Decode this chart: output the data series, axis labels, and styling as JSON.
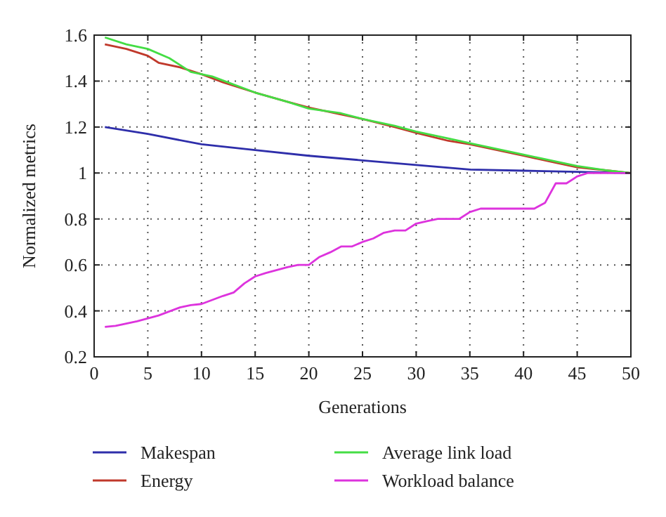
{
  "chart_data": {
    "type": "line",
    "xlabel": "Generations",
    "ylabel": "Normalized metrics",
    "xlim": [
      0,
      50
    ],
    "xticks": [
      0,
      5,
      10,
      15,
      20,
      25,
      30,
      35,
      40,
      45,
      50
    ],
    "ylim": [
      0.2,
      1.6
    ],
    "yticks": [
      0.2,
      0.4,
      0.6,
      0.8,
      {
        "value": 1,
        "label": "1"
      },
      1.2,
      1.4,
      1.6
    ],
    "grid": true,
    "line_style": "solid",
    "legend": "bottom",
    "series": [
      {
        "name": "Makespan",
        "color": "#2e2eaa",
        "x": [
          1,
          5,
          10,
          15,
          20,
          25,
          30,
          35,
          40,
          45,
          50
        ],
        "values": [
          1.2,
          1.17,
          1.125,
          1.1,
          1.075,
          1.055,
          1.035,
          1.015,
          1.01,
          1.005,
          1.0
        ]
      },
      {
        "name": "Energy",
        "color": "#c0392b",
        "x": [
          1,
          3,
          5,
          6,
          8,
          10,
          12,
          15,
          18,
          20,
          23,
          25,
          28,
          30,
          33,
          35,
          38,
          40,
          43,
          45,
          48,
          50
        ],
        "values": [
          1.56,
          1.54,
          1.51,
          1.48,
          1.46,
          1.43,
          1.395,
          1.35,
          1.31,
          1.285,
          1.255,
          1.235,
          1.2,
          1.175,
          1.14,
          1.125,
          1.095,
          1.075,
          1.045,
          1.025,
          1.01,
          1.0
        ]
      },
      {
        "name": "Average link load",
        "color": "#44dd44",
        "x": [
          1,
          3,
          5,
          7,
          9,
          11,
          13,
          15,
          18,
          20,
          23,
          25,
          28,
          30,
          33,
          35,
          38,
          40,
          43,
          45,
          48,
          50
        ],
        "values": [
          1.59,
          1.56,
          1.54,
          1.5,
          1.44,
          1.42,
          1.385,
          1.35,
          1.31,
          1.28,
          1.26,
          1.235,
          1.205,
          1.18,
          1.15,
          1.13,
          1.1,
          1.08,
          1.05,
          1.03,
          1.01,
          1.0
        ]
      },
      {
        "name": "Workload balance",
        "color": "#dd33dd",
        "x": [
          1,
          2,
          4,
          6,
          8,
          9,
          10,
          12,
          13,
          14,
          15,
          16,
          18,
          19,
          20,
          21,
          22,
          23,
          24,
          25,
          26,
          27,
          28,
          29,
          30,
          31,
          32,
          34,
          35,
          36,
          41,
          42,
          43,
          44,
          45,
          46,
          50
        ],
        "values": [
          0.33,
          0.335,
          0.355,
          0.38,
          0.415,
          0.425,
          0.43,
          0.465,
          0.48,
          0.52,
          0.55,
          0.565,
          0.59,
          0.6,
          0.6,
          0.635,
          0.655,
          0.68,
          0.68,
          0.7,
          0.715,
          0.74,
          0.75,
          0.75,
          0.78,
          0.79,
          0.8,
          0.8,
          0.83,
          0.845,
          0.845,
          0.87,
          0.955,
          0.955,
          0.985,
          1.0,
          1.0
        ]
      }
    ]
  }
}
